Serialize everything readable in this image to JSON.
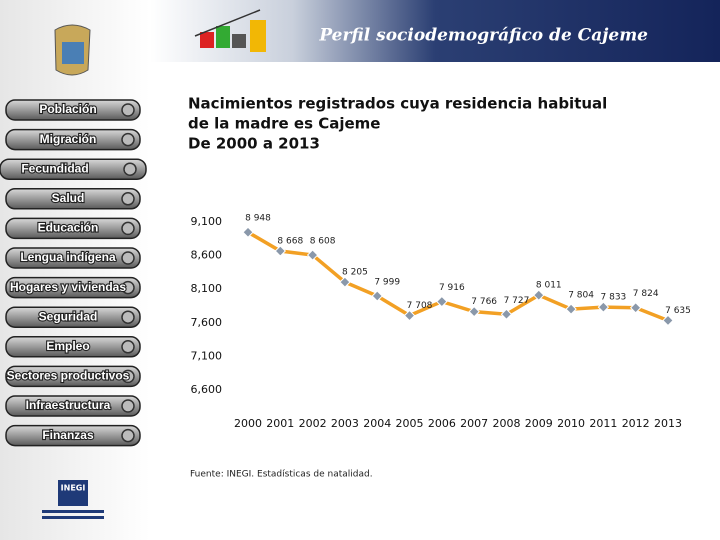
{
  "header": {
    "title": "Perfil sociodemográfico de Cajeme"
  },
  "nav": {
    "items": [
      "Población",
      "Migración",
      "Fecundidad",
      "Salud",
      "Educación",
      "Lengua indígena",
      "Hogares y viviendas",
      "Seguridad",
      "Empleo",
      "Sectores productivos",
      "Infraestructura",
      "Finanzas"
    ]
  },
  "logo": {
    "label": "INEGI"
  },
  "chart_data": {
    "type": "line",
    "title": [
      "Nacimientos registrados cuya residencia habitual",
      "de la madre es Cajeme",
      "De 2000 a 2013"
    ],
    "categories": [
      "2000",
      "2001",
      "2002",
      "2003",
      "2004",
      "2005",
      "2006",
      "2007",
      "2008",
      "2009",
      "2010",
      "2011",
      "2012",
      "2013"
    ],
    "values": [
      8948,
      8668,
      8608,
      8205,
      7999,
      7708,
      7916,
      7766,
      7727,
      8011,
      7804,
      7833,
      7824,
      7635
    ],
    "value_labels": [
      "8 948",
      "8 668",
      "8 608",
      "8 205",
      "7 999",
      "7 708",
      "7 916",
      "7 766",
      "7 727",
      "8 011",
      "7 804",
      "7 833",
      "7 824",
      "7 635"
    ],
    "color": "#f2a024",
    "marker_color": "#8a98aa",
    "ylim": [
      6600,
      9100
    ],
    "yticks": [
      {
        "value": 6600,
        "label": "6,600"
      },
      {
        "value": 7100,
        "label": "7,100"
      },
      {
        "value": 7600,
        "label": "7,600"
      },
      {
        "value": 8100,
        "label": "8,100"
      },
      {
        "value": 8600,
        "label": "8,600"
      },
      {
        "value": 9100,
        "label": "9,100"
      }
    ],
    "source": "Fuente: INEGI. Estadísticas de natalidad."
  }
}
